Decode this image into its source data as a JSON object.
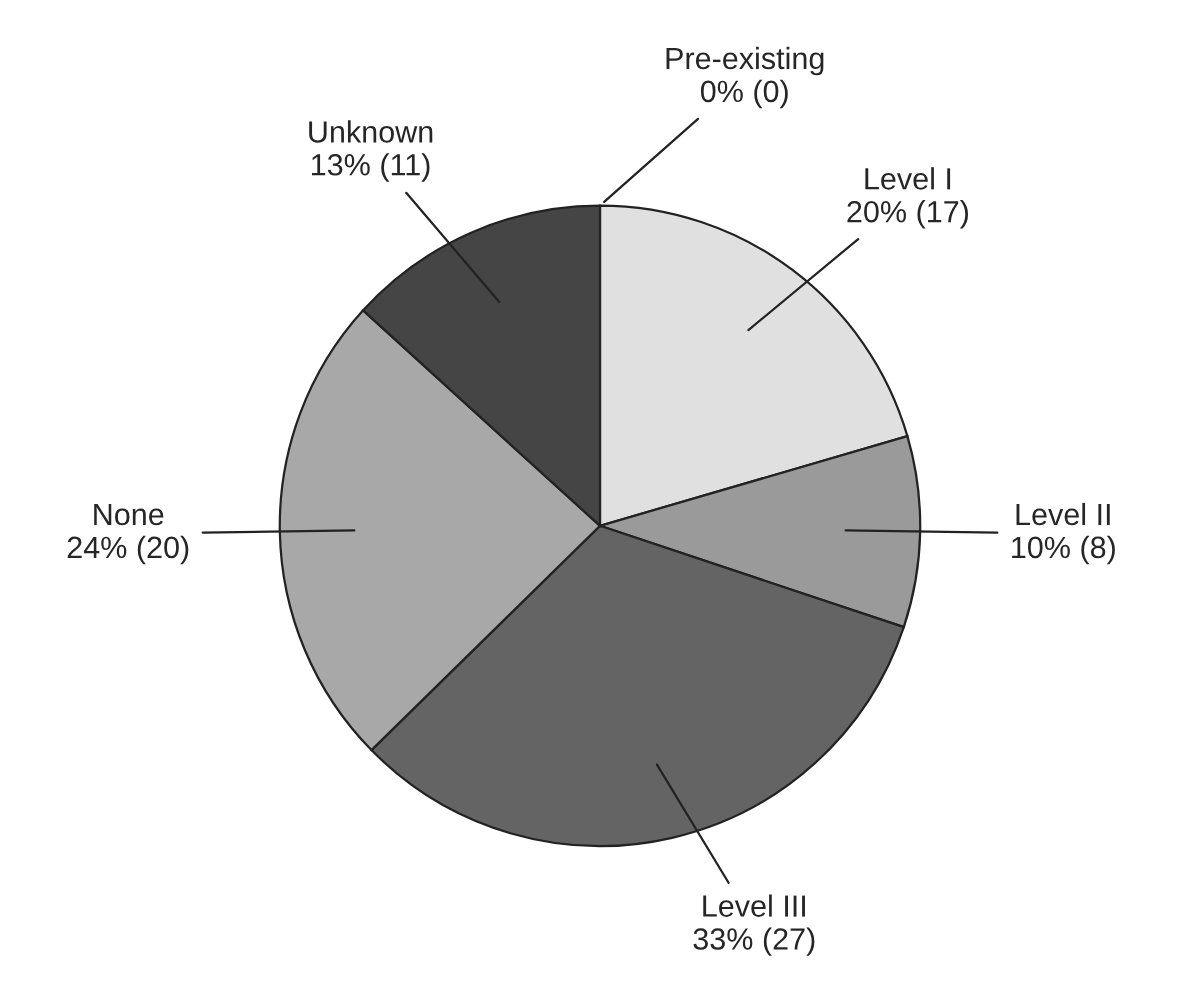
{
  "chart_data": {
    "type": "pie",
    "categories": [
      "Pre-existing",
      "Level I",
      "Level II",
      "Level III",
      "None",
      "Unknown"
    ],
    "values": [
      0,
      17,
      8,
      27,
      20,
      11
    ],
    "value_labels": [
      "0% (0)",
      "20% (17)",
      "10% (8)",
      "33% (27)",
      "24% (20)",
      "13% (11)"
    ],
    "colors": [
      "#bbbbbb",
      "#e0e0e0",
      "#9a9a9a",
      "#646464",
      "#a8a8a8",
      "#454545"
    ]
  }
}
